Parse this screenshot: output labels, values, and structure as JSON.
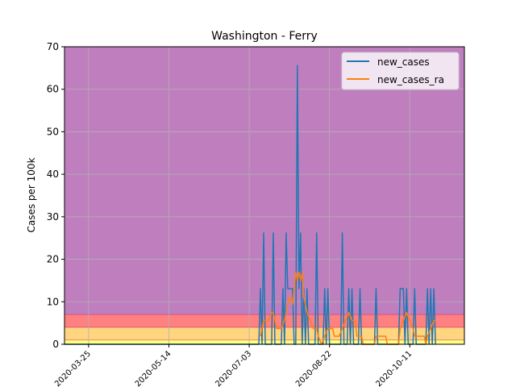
{
  "chart_data": {
    "type": "line",
    "title": "Washington - Ferry",
    "xlabel": "",
    "ylabel": "Cases per 100k",
    "ylim": [
      0,
      70
    ],
    "xlim": [
      "2020-03-10",
      "2020-11-14"
    ],
    "yticks": [
      "0",
      "10",
      "20",
      "30",
      "40",
      "50",
      "60",
      "70"
    ],
    "xticks": [
      {
        "date": "2020-03-25",
        "label": "2020-03-25"
      },
      {
        "date": "2020-05-14",
        "label": "2020-05-14"
      },
      {
        "date": "2020-07-03",
        "label": "2020-07-03"
      },
      {
        "date": "2020-08-22",
        "label": "2020-08-22"
      },
      {
        "date": "2020-10-11",
        "label": "2020-10-11"
      }
    ],
    "grid": true,
    "legend_position": "top-right",
    "background_bands": [
      {
        "from": 0,
        "to": 1,
        "color": "#ffff80"
      },
      {
        "from": 1,
        "to": 4,
        "color": "#ffd580"
      },
      {
        "from": 4,
        "to": 7,
        "color": "#ff8080"
      },
      {
        "from": 7,
        "to": 70,
        "color": "#bf7fbf"
      }
    ],
    "series": [
      {
        "name": "new_cases",
        "color": "#1f77b4",
        "points": [
          [
            "2020-03-10",
            0
          ],
          [
            "2020-07-09",
            0
          ],
          [
            "2020-07-10",
            13.1
          ],
          [
            "2020-07-11",
            0
          ],
          [
            "2020-07-12",
            26.2
          ],
          [
            "2020-07-13",
            0
          ],
          [
            "2020-07-17",
            0
          ],
          [
            "2020-07-18",
            26.2
          ],
          [
            "2020-07-19",
            0
          ],
          [
            "2020-07-23",
            0
          ],
          [
            "2020-07-24",
            13.1
          ],
          [
            "2020-07-25",
            0
          ],
          [
            "2020-07-26",
            26.2
          ],
          [
            "2020-07-27",
            13.1
          ],
          [
            "2020-07-30",
            13.1
          ],
          [
            "2020-07-31",
            0
          ],
          [
            "2020-08-01",
            0
          ],
          [
            "2020-08-02",
            65.6
          ],
          [
            "2020-08-03",
            13.1
          ],
          [
            "2020-08-04",
            26.2
          ],
          [
            "2020-08-05",
            0
          ],
          [
            "2020-08-06",
            13.1
          ],
          [
            "2020-08-07",
            0
          ],
          [
            "2020-08-08",
            13.1
          ],
          [
            "2020-08-09",
            0
          ],
          [
            "2020-08-13",
            0
          ],
          [
            "2020-08-14",
            26.2
          ],
          [
            "2020-08-15",
            0
          ],
          [
            "2020-08-18",
            0
          ],
          [
            "2020-08-19",
            13.1
          ],
          [
            "2020-08-20",
            0
          ],
          [
            "2020-08-21",
            13.1
          ],
          [
            "2020-08-22",
            0
          ],
          [
            "2020-08-29",
            0
          ],
          [
            "2020-08-30",
            26.2
          ],
          [
            "2020-08-31",
            0
          ],
          [
            "2020-09-02",
            0
          ],
          [
            "2020-09-03",
            13.1
          ],
          [
            "2020-09-04",
            0
          ],
          [
            "2020-09-05",
            13.1
          ],
          [
            "2020-09-06",
            0
          ],
          [
            "2020-09-09",
            0
          ],
          [
            "2020-09-10",
            13.1
          ],
          [
            "2020-09-11",
            0
          ],
          [
            "2020-09-19",
            0
          ],
          [
            "2020-09-20",
            13.1
          ],
          [
            "2020-09-21",
            0
          ],
          [
            "2020-10-04",
            0
          ],
          [
            "2020-10-05",
            13.1
          ],
          [
            "2020-10-07",
            13.1
          ],
          [
            "2020-10-08",
            0
          ],
          [
            "2020-10-09",
            13.1
          ],
          [
            "2020-10-10",
            0
          ],
          [
            "2020-10-13",
            0
          ],
          [
            "2020-10-14",
            13.1
          ],
          [
            "2020-10-15",
            0
          ],
          [
            "2020-10-21",
            0
          ],
          [
            "2020-10-22",
            13.1
          ],
          [
            "2020-10-23",
            0
          ],
          [
            "2020-10-24",
            13.1
          ],
          [
            "2020-10-25",
            0
          ],
          [
            "2020-10-26",
            13.1
          ],
          [
            "2020-10-27",
            0
          ]
        ]
      },
      {
        "name": "new_cases_ra",
        "color": "#ff7f0e",
        "points": [
          [
            "2020-07-10",
            1.9
          ],
          [
            "2020-07-12",
            5.6
          ],
          [
            "2020-07-15",
            5.6
          ],
          [
            "2020-07-17",
            7.5
          ],
          [
            "2020-07-18",
            7.5
          ],
          [
            "2020-07-20",
            3.7
          ],
          [
            "2020-07-23",
            3.7
          ],
          [
            "2020-07-25",
            5.6
          ],
          [
            "2020-07-26",
            7.5
          ],
          [
            "2020-07-28",
            11.2
          ],
          [
            "2020-07-30",
            9.4
          ],
          [
            "2020-07-31",
            13.1
          ],
          [
            "2020-08-01",
            16.9
          ],
          [
            "2020-08-02",
            15.0
          ],
          [
            "2020-08-03",
            16.9
          ],
          [
            "2020-08-04",
            15.0
          ],
          [
            "2020-08-05",
            16.9
          ],
          [
            "2020-08-06",
            11.2
          ],
          [
            "2020-08-07",
            9.4
          ],
          [
            "2020-08-08",
            7.5
          ],
          [
            "2020-08-10",
            5.6
          ],
          [
            "2020-08-12",
            3.7
          ],
          [
            "2020-08-14",
            3.7
          ],
          [
            "2020-08-15",
            1.9
          ],
          [
            "2020-08-17",
            0
          ],
          [
            "2020-08-19",
            1.9
          ],
          [
            "2020-08-21",
            3.7
          ],
          [
            "2020-08-24",
            3.7
          ],
          [
            "2020-08-25",
            1.9
          ],
          [
            "2020-08-28",
            1.9
          ],
          [
            "2020-08-30",
            3.7
          ],
          [
            "2020-09-01",
            5.6
          ],
          [
            "2020-09-03",
            7.5
          ],
          [
            "2020-09-05",
            5.6
          ],
          [
            "2020-09-07",
            5.6
          ],
          [
            "2020-09-08",
            1.9
          ],
          [
            "2020-09-11",
            1.9
          ],
          [
            "2020-09-12",
            0
          ],
          [
            "2020-09-19",
            0
          ],
          [
            "2020-09-20",
            1.9
          ],
          [
            "2020-09-26",
            1.9
          ],
          [
            "2020-09-27",
            0
          ],
          [
            "2020-10-04",
            0
          ],
          [
            "2020-10-05",
            3.7
          ],
          [
            "2020-10-07",
            5.6
          ],
          [
            "2020-10-09",
            7.5
          ],
          [
            "2020-10-11",
            5.6
          ],
          [
            "2020-10-13",
            3.7
          ],
          [
            "2020-10-14",
            1.9
          ],
          [
            "2020-10-20",
            1.9
          ],
          [
            "2020-10-21",
            0
          ],
          [
            "2020-10-22",
            1.9
          ],
          [
            "2020-10-24",
            3.7
          ],
          [
            "2020-10-26",
            5.6
          ],
          [
            "2020-10-27",
            5.6
          ]
        ]
      }
    ]
  }
}
